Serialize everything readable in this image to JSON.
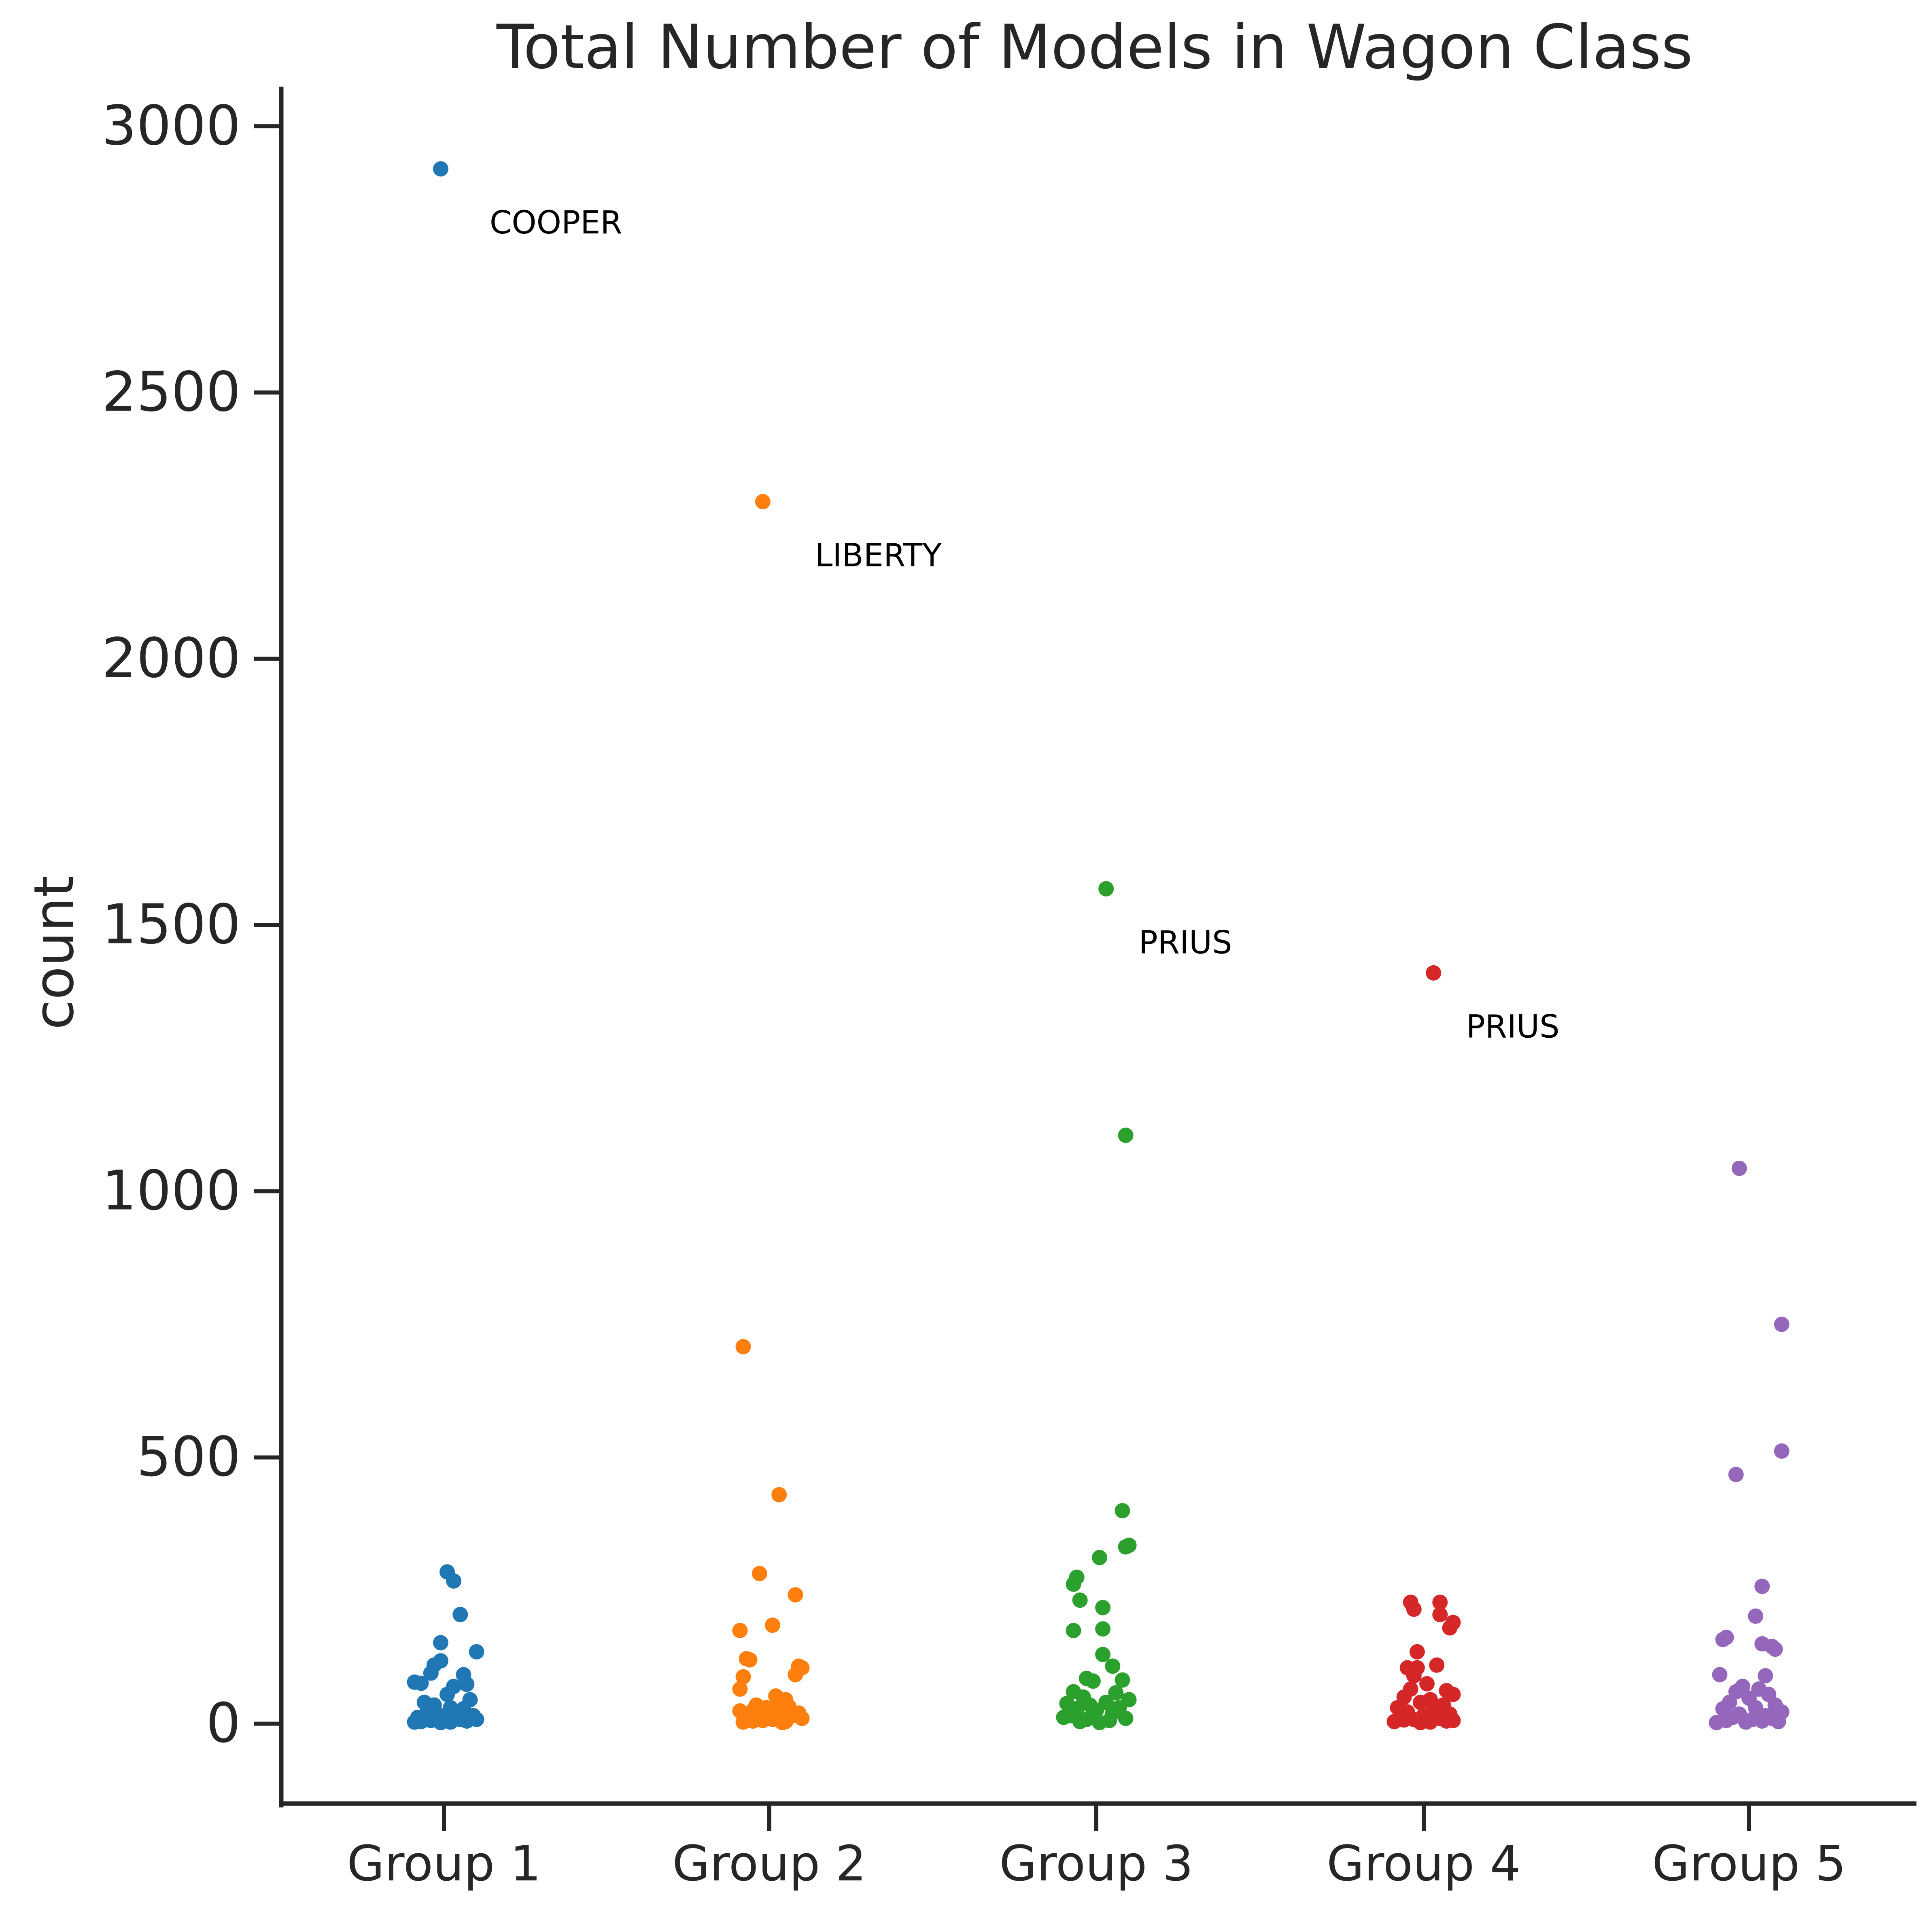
{
  "chart_data": {
    "type": "scatter",
    "subtype": "strip",
    "title": "Total Number of Models in Wagon Class",
    "xlabel": "",
    "ylabel": "count",
    "categories": [
      "Group 1",
      "Group 2",
      "Group 3",
      "Group 4",
      "Group 5"
    ],
    "ylim": [
      -150,
      3070
    ],
    "yticks": [
      0,
      500,
      1000,
      1500,
      2000,
      2500,
      3000
    ],
    "grid": false,
    "legend": "none",
    "series": [
      {
        "category": "Group 1",
        "color": "#1f77b4",
        "points": [
          {
            "offset": -0.01,
            "value": 2920
          },
          {
            "offset": 0.01,
            "value": 285
          },
          {
            "offset": 0.03,
            "value": 268
          },
          {
            "offset": 0.05,
            "value": 205
          },
          {
            "offset": -0.01,
            "value": 152
          },
          {
            "offset": 0.1,
            "value": 135
          },
          {
            "offset": -0.01,
            "value": 118
          },
          {
            "offset": -0.03,
            "value": 110
          },
          {
            "offset": -0.04,
            "value": 95
          },
          {
            "offset": 0.06,
            "value": 92
          },
          {
            "offset": -0.09,
            "value": 78
          },
          {
            "offset": -0.07,
            "value": 76
          },
          {
            "offset": 0.07,
            "value": 74
          },
          {
            "offset": 0.03,
            "value": 70
          },
          {
            "offset": 0.01,
            "value": 55
          },
          {
            "offset": 0.08,
            "value": 45
          },
          {
            "offset": -0.06,
            "value": 40
          },
          {
            "offset": -0.03,
            "value": 35
          },
          {
            "offset": 0.02,
            "value": 30
          },
          {
            "offset": 0.06,
            "value": 28
          },
          {
            "offset": -0.05,
            "value": 25
          },
          {
            "offset": 0.04,
            "value": 20
          },
          {
            "offset": -0.02,
            "value": 18
          },
          {
            "offset": 0.09,
            "value": 15
          },
          {
            "offset": -0.08,
            "value": 12
          },
          {
            "offset": 0.0,
            "value": 10
          },
          {
            "offset": 0.05,
            "value": 8
          },
          {
            "offset": -0.04,
            "value": 6
          },
          {
            "offset": 0.07,
            "value": 5
          },
          {
            "offset": -0.07,
            "value": 4
          },
          {
            "offset": 0.02,
            "value": 3
          },
          {
            "offset": -0.01,
            "value": 2
          },
          {
            "offset": 0.1,
            "value": 8
          },
          {
            "offset": -0.09,
            "value": 3
          },
          {
            "offset": 0.04,
            "value": 12
          }
        ]
      },
      {
        "category": "Group 2",
        "color": "#ff7f0e",
        "points": [
          {
            "offset": -0.02,
            "value": 2295
          },
          {
            "offset": -0.08,
            "value": 708
          },
          {
            "offset": 0.03,
            "value": 430
          },
          {
            "offset": -0.03,
            "value": 282
          },
          {
            "offset": 0.08,
            "value": 242
          },
          {
            "offset": 0.01,
            "value": 185
          },
          {
            "offset": -0.09,
            "value": 175
          },
          {
            "offset": -0.07,
            "value": 122
          },
          {
            "offset": -0.06,
            "value": 120
          },
          {
            "offset": 0.09,
            "value": 108
          },
          {
            "offset": 0.1,
            "value": 105
          },
          {
            "offset": 0.08,
            "value": 92
          },
          {
            "offset": -0.08,
            "value": 88
          },
          {
            "offset": -0.09,
            "value": 65
          },
          {
            "offset": 0.02,
            "value": 52
          },
          {
            "offset": 0.05,
            "value": 45
          },
          {
            "offset": 0.03,
            "value": 40
          },
          {
            "offset": -0.04,
            "value": 35
          },
          {
            "offset": 0.06,
            "value": 32
          },
          {
            "offset": -0.01,
            "value": 30
          },
          {
            "offset": 0.0,
            "value": 28
          },
          {
            "offset": -0.05,
            "value": 25
          },
          {
            "offset": -0.09,
            "value": 24
          },
          {
            "offset": 0.04,
            "value": 22
          },
          {
            "offset": 0.09,
            "value": 20
          },
          {
            "offset": -0.03,
            "value": 18
          },
          {
            "offset": 0.07,
            "value": 15
          },
          {
            "offset": -0.06,
            "value": 12
          },
          {
            "offset": 0.1,
            "value": 10
          },
          {
            "offset": 0.01,
            "value": 8
          },
          {
            "offset": -0.02,
            "value": 6
          },
          {
            "offset": 0.05,
            "value": 4
          },
          {
            "offset": -0.08,
            "value": 3
          },
          {
            "offset": 0.04,
            "value": 2
          },
          {
            "offset": -0.05,
            "value": 5
          }
        ]
      },
      {
        "category": "Group 3",
        "color": "#2ca02c",
        "points": [
          {
            "offset": 0.03,
            "value": 1568
          },
          {
            "offset": 0.09,
            "value": 1105
          },
          {
            "offset": 0.08,
            "value": 400
          },
          {
            "offset": 0.1,
            "value": 335
          },
          {
            "offset": 0.09,
            "value": 332
          },
          {
            "offset": 0.01,
            "value": 312
          },
          {
            "offset": -0.06,
            "value": 275
          },
          {
            "offset": -0.07,
            "value": 262
          },
          {
            "offset": -0.05,
            "value": 232
          },
          {
            "offset": 0.02,
            "value": 218
          },
          {
            "offset": -0.07,
            "value": 175
          },
          {
            "offset": 0.02,
            "value": 178
          },
          {
            "offset": 0.02,
            "value": 130
          },
          {
            "offset": 0.05,
            "value": 108
          },
          {
            "offset": -0.03,
            "value": 85
          },
          {
            "offset": 0.08,
            "value": 82
          },
          {
            "offset": -0.01,
            "value": 80
          },
          {
            "offset": -0.07,
            "value": 60
          },
          {
            "offset": 0.06,
            "value": 58
          },
          {
            "offset": -0.04,
            "value": 50
          },
          {
            "offset": 0.1,
            "value": 45
          },
          {
            "offset": 0.03,
            "value": 40
          },
          {
            "offset": -0.09,
            "value": 38
          },
          {
            "offset": -0.02,
            "value": 35
          },
          {
            "offset": 0.07,
            "value": 30
          },
          {
            "offset": -0.06,
            "value": 28
          },
          {
            "offset": 0.0,
            "value": 25
          },
          {
            "offset": 0.05,
            "value": 20
          },
          {
            "offset": -0.08,
            "value": 15
          },
          {
            "offset": 0.09,
            "value": 10
          },
          {
            "offset": -0.03,
            "value": 8
          },
          {
            "offset": 0.04,
            "value": 6
          },
          {
            "offset": -0.05,
            "value": 4
          },
          {
            "offset": 0.01,
            "value": 2
          },
          {
            "offset": -0.1,
            "value": 12
          }
        ]
      },
      {
        "category": "Group 4",
        "color": "#d62728",
        "points": [
          {
            "offset": 0.03,
            "value": 1410
          },
          {
            "offset": -0.04,
            "value": 228
          },
          {
            "offset": 0.05,
            "value": 228
          },
          {
            "offset": -0.03,
            "value": 215
          },
          {
            "offset": 0.05,
            "value": 205
          },
          {
            "offset": 0.09,
            "value": 190
          },
          {
            "offset": 0.08,
            "value": 180
          },
          {
            "offset": -0.02,
            "value": 135
          },
          {
            "offset": -0.05,
            "value": 105
          },
          {
            "offset": 0.04,
            "value": 110
          },
          {
            "offset": -0.02,
            "value": 105
          },
          {
            "offset": -0.03,
            "value": 90
          },
          {
            "offset": 0.01,
            "value": 75
          },
          {
            "offset": -0.04,
            "value": 65
          },
          {
            "offset": 0.07,
            "value": 62
          },
          {
            "offset": 0.09,
            "value": 55
          },
          {
            "offset": -0.06,
            "value": 50
          },
          {
            "offset": 0.02,
            "value": 45
          },
          {
            "offset": -0.01,
            "value": 40
          },
          {
            "offset": 0.06,
            "value": 35
          },
          {
            "offset": -0.08,
            "value": 30
          },
          {
            "offset": 0.03,
            "value": 25
          },
          {
            "offset": -0.05,
            "value": 22
          },
          {
            "offset": 0.08,
            "value": 18
          },
          {
            "offset": 0.0,
            "value": 15
          },
          {
            "offset": -0.07,
            "value": 12
          },
          {
            "offset": 0.05,
            "value": 10
          },
          {
            "offset": -0.03,
            "value": 8
          },
          {
            "offset": 0.09,
            "value": 6
          },
          {
            "offset": -0.09,
            "value": 4
          },
          {
            "offset": 0.02,
            "value": 3
          },
          {
            "offset": -0.01,
            "value": 2
          },
          {
            "offset": 0.07,
            "value": 5
          },
          {
            "offset": -0.06,
            "value": 7
          }
        ]
      },
      {
        "category": "Group 5",
        "color": "#9467bd",
        "points": [
          {
            "offset": -0.03,
            "value": 1043
          },
          {
            "offset": 0.1,
            "value": 750
          },
          {
            "offset": 0.1,
            "value": 512
          },
          {
            "offset": -0.04,
            "value": 468
          },
          {
            "offset": 0.04,
            "value": 258
          },
          {
            "offset": 0.02,
            "value": 202
          },
          {
            "offset": -0.07,
            "value": 162
          },
          {
            "offset": -0.08,
            "value": 158
          },
          {
            "offset": 0.04,
            "value": 150
          },
          {
            "offset": 0.07,
            "value": 145
          },
          {
            "offset": 0.08,
            "value": 140
          },
          {
            "offset": -0.09,
            "value": 92
          },
          {
            "offset": 0.05,
            "value": 90
          },
          {
            "offset": -0.02,
            "value": 70
          },
          {
            "offset": 0.03,
            "value": 65
          },
          {
            "offset": -0.04,
            "value": 60
          },
          {
            "offset": 0.06,
            "value": 55
          },
          {
            "offset": 0.0,
            "value": 48
          },
          {
            "offset": -0.06,
            "value": 40
          },
          {
            "offset": 0.08,
            "value": 35
          },
          {
            "offset": 0.02,
            "value": 30
          },
          {
            "offset": -0.08,
            "value": 28
          },
          {
            "offset": 0.1,
            "value": 22
          },
          {
            "offset": -0.03,
            "value": 18
          },
          {
            "offset": 0.05,
            "value": 15
          },
          {
            "offset": -0.05,
            "value": 12
          },
          {
            "offset": 0.07,
            "value": 10
          },
          {
            "offset": 0.01,
            "value": 8
          },
          {
            "offset": -0.07,
            "value": 6
          },
          {
            "offset": 0.09,
            "value": 4
          },
          {
            "offset": -0.01,
            "value": 3
          },
          {
            "offset": -0.1,
            "value": 2
          },
          {
            "offset": 0.04,
            "value": 5
          }
        ]
      }
    ],
    "annotations": [
      {
        "text": "COOPER",
        "category": "Group 1",
        "offset": 0.14,
        "value": 2820
      },
      {
        "text": "LIBERTY",
        "category": "Group 2",
        "offset": 0.14,
        "value": 2195
      },
      {
        "text": "PRIUS",
        "category": "Group 3",
        "offset": 0.13,
        "value": 1468
      },
      {
        "text": "PRIUS",
        "category": "Group 4",
        "offset": 0.13,
        "value": 1310
      }
    ]
  }
}
